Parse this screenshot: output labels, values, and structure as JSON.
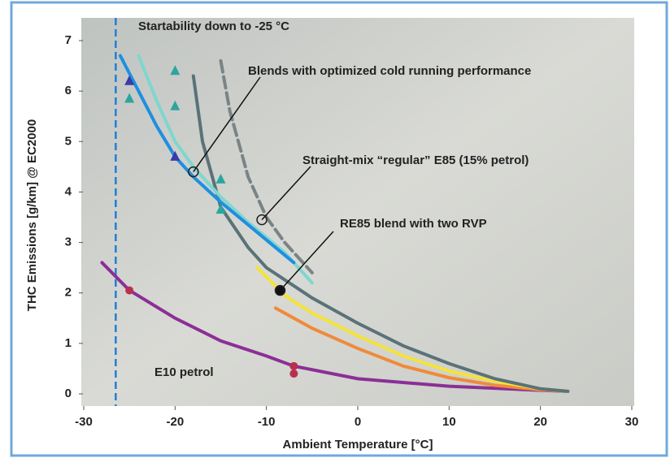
{
  "chart_data": {
    "type": "line",
    "xlabel": "Ambient Temperature [°C]",
    "ylabel": "THC Emissions [g/km] @ EC2000",
    "xlim": [
      -30,
      30
    ],
    "xticks": [
      -30,
      -20,
      -10,
      0,
      10,
      20,
      30
    ],
    "ylim": [
      0,
      7
    ],
    "yticks": [
      0,
      1,
      2,
      3,
      4,
      5,
      6,
      7
    ],
    "vline": {
      "x": -26.5,
      "color": "#1e7fd6",
      "text": "Startability down to -25 °C"
    },
    "series": [
      {
        "color": "#8b2f96",
        "x": [
          -28,
          -25,
          -20,
          -15,
          -10,
          -7,
          0,
          10,
          20,
          23
        ],
        "values": [
          2.6,
          2.05,
          1.5,
          1.05,
          0.75,
          0.55,
          0.3,
          0.15,
          0.07,
          0.05
        ]
      },
      {
        "color": "#f08a3a",
        "x": [
          -9,
          -5,
          0,
          5,
          10,
          15,
          20,
          23
        ],
        "values": [
          1.7,
          1.3,
          0.9,
          0.55,
          0.32,
          0.17,
          0.08,
          0.05
        ]
      },
      {
        "color": "#f4e33a",
        "x": [
          -11,
          -8,
          -5,
          0,
          5,
          10,
          15,
          20,
          23
        ],
        "values": [
          2.5,
          1.95,
          1.6,
          1.15,
          0.75,
          0.45,
          0.25,
          0.1,
          0.05
        ]
      },
      {
        "color": "#5a7278",
        "x": [
          -18,
          -17,
          -15,
          -12,
          -10,
          -5,
          0,
          5,
          10,
          15,
          20,
          23
        ],
        "values": [
          6.3,
          5.0,
          3.7,
          2.9,
          2.5,
          1.9,
          1.4,
          0.95,
          0.6,
          0.3,
          0.1,
          0.05
        ]
      },
      {
        "color": "#7a8486",
        "dash": true,
        "x": [
          -15,
          -14,
          -12,
          -10,
          -8,
          -5
        ],
        "values": [
          6.6,
          5.6,
          4.3,
          3.5,
          3.0,
          2.4
        ]
      },
      {
        "color": "#7fd6cf",
        "x": [
          -24,
          -22,
          -20,
          -18,
          -15,
          -12,
          -8,
          -5
        ],
        "values": [
          6.7,
          5.8,
          5.0,
          4.5,
          3.9,
          3.4,
          2.8,
          2.2
        ]
      },
      {
        "color": "#1f8fe0",
        "x": [
          -26,
          -24,
          -22,
          -20,
          -18,
          -15,
          -12,
          -9,
          -7
        ],
        "values": [
          6.7,
          6.0,
          5.3,
          4.7,
          4.3,
          3.8,
          3.35,
          2.9,
          2.6
        ]
      }
    ],
    "markers": [
      {
        "shape": "triangle",
        "color": "#2aa6a0",
        "x": [
          -25,
          -20,
          -20,
          -15,
          -15
        ],
        "values": [
          5.85,
          6.4,
          5.7,
          4.25,
          3.65
        ]
      },
      {
        "shape": "triangle",
        "color": "#3a3aa8",
        "x": [
          -25,
          -20
        ],
        "values": [
          6.2,
          4.7
        ]
      },
      {
        "shape": "circle",
        "color": "#b83050",
        "x": [
          -25,
          -7,
          -7
        ],
        "values": [
          2.05,
          0.55,
          0.4
        ]
      }
    ],
    "annotations": [
      {
        "text": "Blends with optimized cold running performance",
        "x": -18,
        "y": 4.4,
        "filled": false
      },
      {
        "text": "Straight-mix “regular”  E85 (15% petrol)",
        "x": -10.5,
        "y": 3.45,
        "filled": false
      },
      {
        "text": "RE85 blend with two RVP",
        "x": -8.5,
        "y": 2.05,
        "filled": true
      },
      {
        "text": "E10 petrol"
      }
    ]
  }
}
